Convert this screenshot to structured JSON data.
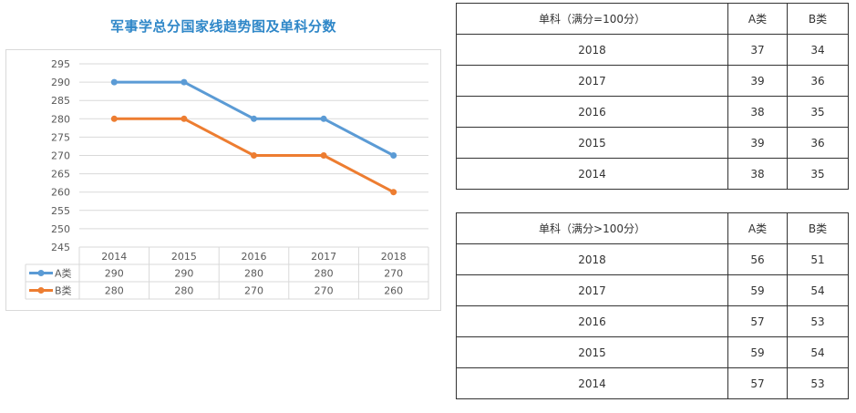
{
  "chart_data": {
    "type": "line",
    "title": "军事学总分国家线趋势图及单科分数",
    "categories": [
      "2014",
      "2015",
      "2016",
      "2017",
      "2018"
    ],
    "series": [
      {
        "name": "A类",
        "color": "#5b9bd5",
        "values": [
          290,
          290,
          280,
          280,
          270
        ]
      },
      {
        "name": "B类",
        "color": "#ed7d31",
        "values": [
          280,
          280,
          270,
          270,
          260
        ]
      }
    ],
    "ylim": [
      245,
      295
    ],
    "yticks": [
      245,
      250,
      255,
      260,
      265,
      270,
      275,
      280,
      285,
      290,
      295
    ],
    "data_table": true
  },
  "tables": [
    {
      "header": [
        "单科（满分=100分）",
        "A类",
        "B类"
      ],
      "rows": [
        [
          "2018",
          "37",
          "34"
        ],
        [
          "2017",
          "39",
          "36"
        ],
        [
          "2016",
          "38",
          "35"
        ],
        [
          "2015",
          "39",
          "36"
        ],
        [
          "2014",
          "38",
          "35"
        ]
      ]
    },
    {
      "header": [
        "单科（满分>100分）",
        "A类",
        "B类"
      ],
      "rows": [
        [
          "2018",
          "56",
          "51"
        ],
        [
          "2017",
          "59",
          "54"
        ],
        [
          "2016",
          "57",
          "53"
        ],
        [
          "2015",
          "59",
          "54"
        ],
        [
          "2014",
          "57",
          "53"
        ]
      ]
    }
  ]
}
